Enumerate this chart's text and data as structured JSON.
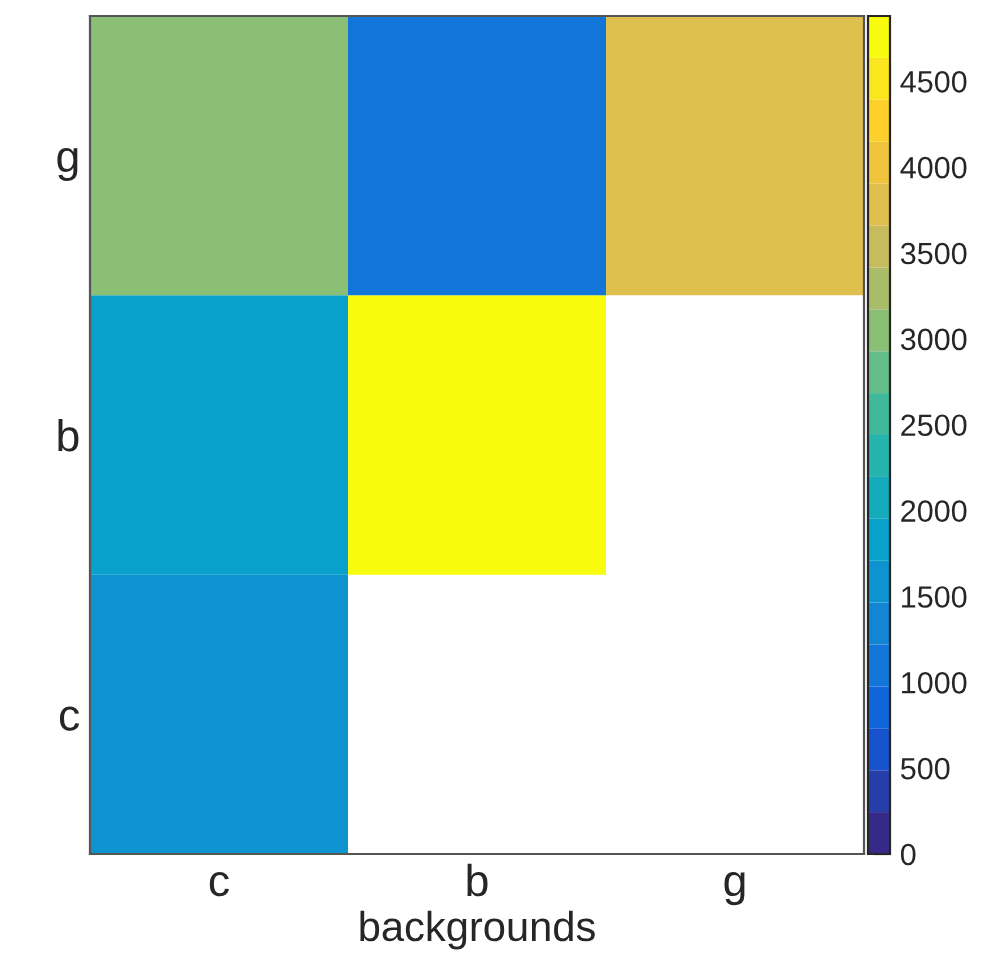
{
  "chart_data": {
    "type": "heatmap",
    "xlabel": "backgrounds",
    "categories": [
      "c",
      "b",
      "g"
    ],
    "y_categories": [
      "g",
      "b",
      "c"
    ],
    "cells": [
      [
        3100,
        1050,
        3700
      ],
      [
        1950,
        4880,
        null
      ],
      [
        1600,
        null,
        null
      ]
    ],
    "clim": [
      0,
      4880
    ],
    "cticks": [
      0,
      500,
      1000,
      1500,
      2000,
      2500,
      3000,
      3500,
      4000,
      4500
    ]
  }
}
